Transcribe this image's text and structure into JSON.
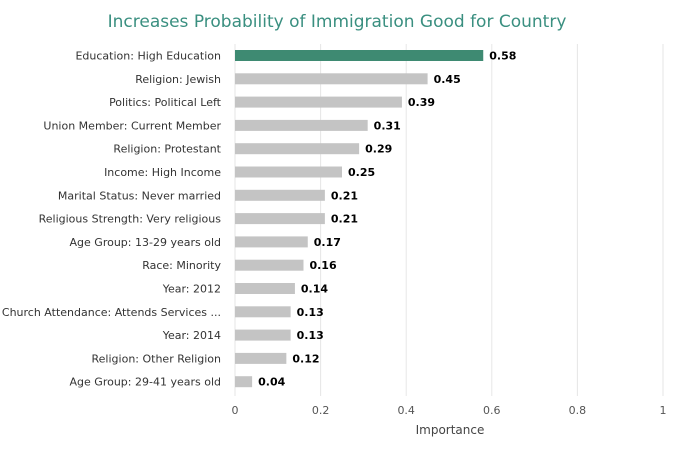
{
  "chart_data": {
    "type": "bar",
    "orientation": "horizontal",
    "title": "Increases Probability of Immigration Good for Country",
    "xlabel": "Importance",
    "ylabel": "",
    "xlim": [
      0,
      1
    ],
    "x_ticks": [
      "0",
      "0.2",
      "0.4",
      "0.6",
      "0.8",
      "1"
    ],
    "x_tick_values": [
      0,
      0.2,
      0.4,
      0.6,
      0.8,
      1
    ],
    "grid": true,
    "categories": [
      "Education: High Education",
      "Religion: Jewish",
      "Politics: Political Left",
      "Union Member: Current Member",
      "Religion: Protestant",
      "Income: High Income",
      "Marital Status: Never married",
      "Religious Strength: Very religious",
      "Age Group: 13-29 years old",
      "Race: Minority",
      "Year: 2012",
      "Church Attendance: Attends Services ...",
      "Year: 2014",
      "Religion: Other Religion",
      "Age Group: 29-41 years old"
    ],
    "values": [
      0.58,
      0.45,
      0.39,
      0.31,
      0.29,
      0.25,
      0.21,
      0.21,
      0.17,
      0.16,
      0.14,
      0.13,
      0.13,
      0.12,
      0.04
    ],
    "value_labels": [
      "0.58",
      "0.45",
      "0.39",
      "0.31",
      "0.29",
      "0.25",
      "0.21",
      "0.21",
      "0.17",
      "0.16",
      "0.14",
      "0.13",
      "0.13",
      "0.12",
      "0.04"
    ],
    "highlight_index": 0,
    "colors": {
      "highlight": "#3e8a72",
      "bar": "#c4c4c4",
      "title": "#3a8f80"
    }
  }
}
